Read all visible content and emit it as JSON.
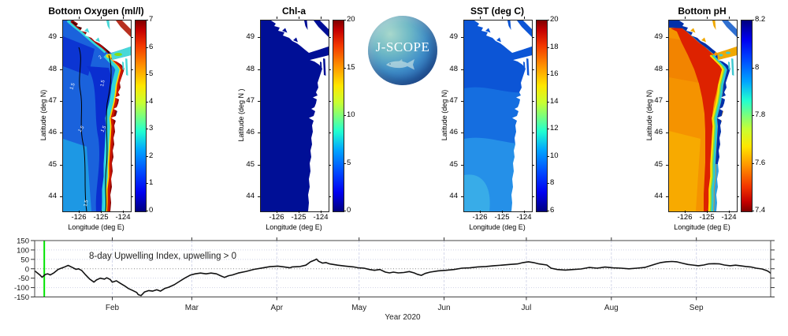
{
  "logo": {
    "text": "J-SCOPE"
  },
  "chart_data": [
    {
      "type": "heatmap",
      "title": "Bottom Oxygen (ml/l)",
      "xlabel": "Longitude (deg E)",
      "ylabel": "Latitude (deg N)",
      "xticks": [
        "-126",
        "-125",
        "-124"
      ],
      "yticks": [
        49,
        48,
        47,
        46,
        45,
        44
      ],
      "colorbar": {
        "min": 0,
        "max": 7,
        "ticks": [
          0,
          1,
          2,
          3,
          4,
          5,
          6,
          7
        ],
        "colormap": "jet"
      },
      "contour_label_values": [
        "1.5",
        "2"
      ],
      "palette": {
        "base": "#1a62dc",
        "deep": "#0a2ed0",
        "light_sw": "#1e9fe4",
        "coastal_cyan": "#2fd5dc",
        "coastal_yellow": "#ffd900",
        "coastal_red": "#cd1800",
        "coastal_darkred": "#8b0000",
        "vi_red": "#aa0000",
        "vi_darkred": "#7f0000",
        "vi_cyan": "#35d8d8",
        "strait": "#48d8d8",
        "strait_green": "#8ae000",
        "strait_yellow": "#ffd700",
        "georgia": "#b83020",
        "inlet": "#48d8d8",
        "sound": "#48d8d8",
        "contour": "#000000",
        "contour_label": "#ffffff"
      }
    },
    {
      "type": "heatmap",
      "title": "Chl-a",
      "xlabel": "Longitude (deg E)",
      "ylabel": "Latitude (deg N )",
      "xticks": [
        "-126",
        "-125",
        "-124"
      ],
      "yticks": [
        49,
        48,
        47,
        46,
        45,
        44
      ],
      "colorbar": {
        "min": 0,
        "max": 20,
        "ticks": [
          0,
          5,
          10,
          15,
          20
        ],
        "colormap": "jet"
      },
      "palette": {
        "base": "#000f96",
        "strait": "#000f96",
        "georgia": "#000f96",
        "inlet": "#000f96",
        "sound": "#000f96",
        "dot": "#30c0ff"
      }
    },
    {
      "type": "heatmap",
      "title": "SST (deg C)",
      "xlabel": "Longitude (deg E)",
      "ylabel": "Latitude (deg N)",
      "xticks": [
        "-126",
        "-125",
        "-124"
      ],
      "yticks": [
        49,
        48,
        47,
        46,
        45,
        44
      ],
      "colorbar": {
        "min": 6,
        "max": 20,
        "ticks": [
          6,
          8,
          10,
          12,
          14,
          16,
          18,
          20
        ],
        "colormap": "jet"
      },
      "palette": {
        "base": "#0c55d6",
        "band2": "#156ee0",
        "band3": "#2590e8",
        "band4": "#38ace8",
        "strait": "#0c55d6",
        "georgia": "#0c55d6",
        "inlet": "#0c55d6",
        "sound": "#0c55d6"
      }
    },
    {
      "type": "heatmap",
      "title": "Bottom pH",
      "xlabel": "Longitude (deg E)",
      "ylabel": "Latitude (deg N)",
      "xticks": [
        "-126",
        "-125",
        "-124"
      ],
      "yticks": [
        49,
        48,
        47,
        46,
        45,
        44
      ],
      "colorbar": {
        "min": 7.4,
        "max": 8.2,
        "ticks": [
          7.4,
          7.6,
          7.8,
          8,
          8.2
        ],
        "colormap": "jet_reversed"
      },
      "palette": {
        "base": "#f59300",
        "sw_yellow": "#f7ae00",
        "north_shade": "#ef7600",
        "red_band": "#dd2200",
        "yellow_strip": "#ffe000",
        "green_strip": "#70dd50",
        "cyan_strip": "#25c8e0",
        "coast_blue": "#0030aa",
        "coast_cyan_south": "#2f9fe0",
        "vi_blue": "#0030aa",
        "vi_cyan": "#35c8d8",
        "corner_blue": "#0030aa",
        "strait": "#f0a800",
        "strait_cyan": "#40c8d0",
        "georgia": "#2f6fd0",
        "inlet": "#f0a800",
        "sound": "#40c8d0"
      }
    },
    {
      "type": "line",
      "name": "8-day Upwelling Index",
      "annotation": "8-day Upwelling Index, upwelling > 0",
      "xlabel": "Year 2020",
      "x_unit": "day of year 2020",
      "ylim": [
        -150,
        150
      ],
      "yticks": [
        150,
        100,
        50,
        0,
        -50,
        -100,
        -150
      ],
      "month_labels": [
        "Feb",
        "Mar",
        "Apr",
        "May",
        "Jun",
        "Jul",
        "Aug",
        "Sep"
      ],
      "month_start_days": [
        31,
        60,
        91,
        121,
        152,
        182,
        213,
        244
      ],
      "x_axis_day_range": [
        2.7,
        271.1
      ],
      "zero_reference_line": 0,
      "event_line": {
        "day": 6.2,
        "color": "#00e400"
      },
      "line_color": "#111111",
      "series": [
        {
          "name": "upwelling_index",
          "x": [
            1,
            2,
            3,
            4.6,
            5.4,
            6.6,
            7.5,
            8.4,
            9.6,
            11.3,
            13.4,
            14.9,
            16.3,
            17.8,
            18.7,
            19.9,
            21.3,
            22.8,
            24.3,
            25.2,
            26.6,
            28.1,
            29,
            30.2,
            31,
            32.5,
            34,
            35.5,
            36.9,
            38.4,
            39.9,
            40.5,
            41.5,
            42.8,
            44.3,
            45.7,
            47.2,
            48.6,
            50.1,
            51.6,
            53.6,
            55.4,
            57.4,
            59.4,
            61.2,
            63.2,
            65.2,
            67,
            69,
            70.5,
            71.9,
            73.4,
            74.8,
            76.9,
            79.8,
            82.7,
            85.6,
            88.5,
            91.4,
            93.7,
            95.8,
            96.6,
            99.5,
            101.6,
            103.3,
            104.8,
            105.5,
            106.2,
            107.7,
            108.9,
            110.3,
            113.2,
            116.1,
            119,
            120.8,
            122.8,
            124.8,
            126.6,
            128.6,
            130.6,
            132.1,
            133.5,
            135.3,
            137.3,
            139.3,
            141.1,
            142.2,
            143.7,
            145.1,
            146.9,
            149.8,
            152.7,
            155.6,
            158.5,
            161.4,
            164.3,
            167.2,
            170.1,
            173,
            175.9,
            178.8,
            180.8,
            182.8,
            184.6,
            186.6,
            189.5,
            191,
            193.3,
            196.2,
            199.1,
            202,
            204.9,
            207.8,
            210.7,
            213.6,
            216.5,
            219.4,
            222.3,
            225.2,
            227.2,
            229.3,
            231,
            233,
            235.1,
            236.8,
            238.8,
            240.9,
            242.6,
            244.7,
            246.7,
            248.4,
            250.5,
            252.5,
            254.2,
            256.3,
            258.3,
            260,
            262.1,
            264.1,
            265.8,
            267.9,
            269.9,
            270.8,
            271.1
          ],
          "y": [
            -2,
            -8,
            -14,
            -33,
            -45,
            -30,
            -27,
            -33,
            -23,
            -3,
            8,
            18,
            8,
            -3,
            0,
            -10,
            -33,
            -55,
            -71,
            -60,
            -50,
            -55,
            -48,
            -57,
            -71,
            -64,
            -78,
            -91,
            -105,
            -115,
            -126,
            -138,
            -143,
            -123,
            -116,
            -119,
            -112,
            -119,
            -105,
            -98,
            -85,
            -68,
            -50,
            -34,
            -27,
            -23,
            -27,
            -23,
            -27,
            -37,
            -46,
            -37,
            -33,
            -23,
            -14,
            -3,
            4,
            11,
            14,
            10,
            5,
            10,
            12,
            19,
            37,
            46,
            52,
            40,
            30,
            33,
            26,
            19,
            14,
            10,
            5,
            3,
            -4,
            -8,
            -4,
            -18,
            -22,
            -18,
            -22,
            -20,
            -15,
            -22,
            -29,
            -35,
            -25,
            -18,
            -11,
            -8,
            -4,
            3,
            5,
            10,
            12,
            16,
            19,
            23,
            26,
            33,
            37,
            33,
            26,
            20,
            3,
            -4,
            -7,
            -4,
            -1,
            7,
            3,
            9,
            5,
            3,
            0,
            3,
            7,
            16,
            26,
            33,
            37,
            39,
            37,
            30,
            23,
            20,
            16,
            20,
            26,
            27,
            26,
            20,
            16,
            19,
            16,
            12,
            9,
            3,
            -1,
            -11,
            -20,
            -25
          ]
        }
      ]
    }
  ]
}
